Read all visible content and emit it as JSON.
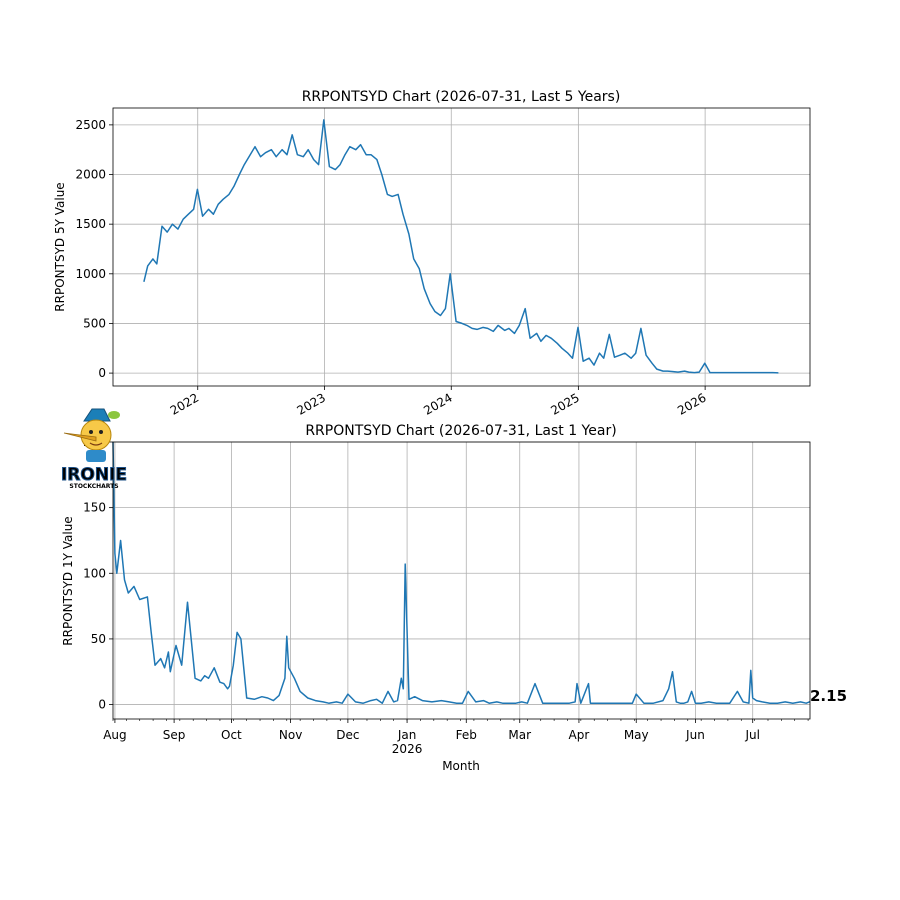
{
  "colors": {
    "line": "#1f77b4",
    "grid": "#b0b0b0",
    "logo_fill": "#8ecbe8",
    "logo_stroke": "#1b4f86"
  },
  "logo": {
    "text_main": "IRONIE",
    "text_sub": "STOCKCHARTS"
  },
  "chart_data": [
    {
      "type": "line",
      "title": "RRPONTSYD Chart (2026-07-31, Last 5 Years)",
      "xlabel": "",
      "ylabel": "RRPONTSYD 5Y Value",
      "x_axis": "date",
      "xlim": [
        "2021-05-02",
        "2026-10-30"
      ],
      "ylim": [
        -130,
        2670
      ],
      "y_ticks": [
        0,
        500,
        1000,
        1500,
        2000,
        2500
      ],
      "x_ticks": [
        {
          "date": "2022-01-01",
          "label": "2022"
        },
        {
          "date": "2023-01-01",
          "label": "2023"
        },
        {
          "date": "2024-01-01",
          "label": "2024"
        },
        {
          "date": "2025-01-01",
          "label": "2025"
        },
        {
          "date": "2026-01-01",
          "label": "2026"
        }
      ],
      "grid": true,
      "series": [
        {
          "x": [
            "2021-07-30",
            "2021-08-10",
            "2021-08-25",
            "2021-09-05",
            "2021-09-20",
            "2021-10-05",
            "2021-10-20",
            "2021-11-05",
            "2021-11-20",
            "2021-12-05",
            "2021-12-20",
            "2021-12-31",
            "2022-01-15",
            "2022-02-01",
            "2022-02-15",
            "2022-03-01",
            "2022-03-15",
            "2022-04-01",
            "2022-04-15",
            "2022-05-01",
            "2022-05-15",
            "2022-06-01",
            "2022-06-15",
            "2022-07-01",
            "2022-07-15",
            "2022-08-01",
            "2022-08-15",
            "2022-09-01",
            "2022-09-15",
            "2022-09-30",
            "2022-10-15",
            "2022-11-01",
            "2022-11-15",
            "2022-12-01",
            "2022-12-15",
            "2022-12-30",
            "2023-01-15",
            "2023-02-01",
            "2023-02-15",
            "2023-03-01",
            "2023-03-15",
            "2023-04-01",
            "2023-04-15",
            "2023-05-01",
            "2023-05-15",
            "2023-06-01",
            "2023-06-15",
            "2023-07-01",
            "2023-07-15",
            "2023-08-01",
            "2023-08-15",
            "2023-09-01",
            "2023-09-15",
            "2023-10-01",
            "2023-10-15",
            "2023-11-01",
            "2023-11-15",
            "2023-12-01",
            "2023-12-15",
            "2023-12-29",
            "2024-01-15",
            "2024-02-01",
            "2024-02-15",
            "2024-03-01",
            "2024-03-15",
            "2024-04-01",
            "2024-04-15",
            "2024-05-01",
            "2024-05-15",
            "2024-06-03",
            "2024-06-15",
            "2024-07-01",
            "2024-07-15",
            "2024-08-01",
            "2024-08-15",
            "2024-09-03",
            "2024-09-15",
            "2024-09-30",
            "2024-10-15",
            "2024-11-01",
            "2024-11-15",
            "2024-12-02",
            "2024-12-15",
            "2024-12-31",
            "2025-01-15",
            "2025-02-01",
            "2025-02-15",
            "2025-03-03",
            "2025-03-15",
            "2025-03-31",
            "2025-04-15",
            "2025-05-01",
            "2025-05-15",
            "2025-06-02",
            "2025-06-15",
            "2025-06-30",
            "2025-07-15",
            "2025-08-01",
            "2025-08-15",
            "2025-09-02",
            "2025-09-15",
            "2025-10-01",
            "2025-10-15",
            "2025-11-03",
            "2025-11-15",
            "2025-12-01",
            "2025-12-15",
            "2025-12-31",
            "2026-01-15",
            "2026-02-02",
            "2026-02-15",
            "2026-03-02",
            "2026-03-15",
            "2026-04-01",
            "2026-04-15",
            "2026-05-01",
            "2026-05-15",
            "2026-06-01",
            "2026-06-15",
            "2026-07-01",
            "2026-07-15",
            "2026-07-31"
          ],
          "values": [
            920,
            1080,
            1150,
            1100,
            1480,
            1420,
            1500,
            1450,
            1550,
            1600,
            1650,
            1850,
            1580,
            1650,
            1600,
            1700,
            1750,
            1800,
            1880,
            2000,
            2100,
            2200,
            2280,
            2180,
            2220,
            2250,
            2180,
            2250,
            2200,
            2400,
            2200,
            2180,
            2250,
            2150,
            2100,
            2550,
            2080,
            2050,
            2100,
            2200,
            2280,
            2250,
            2300,
            2200,
            2200,
            2150,
            2000,
            1800,
            1780,
            1800,
            1600,
            1400,
            1150,
            1050,
            850,
            700,
            620,
            580,
            650,
            1000,
            520,
            500,
            480,
            450,
            440,
            460,
            450,
            420,
            480,
            430,
            450,
            400,
            480,
            650,
            350,
            400,
            320,
            380,
            350,
            300,
            250,
            200,
            150,
            460,
            120,
            150,
            80,
            200,
            150,
            390,
            160,
            180,
            200,
            150,
            200,
            450,
            180,
            100,
            40,
            20,
            20,
            15,
            10,
            20,
            10,
            5,
            10,
            100,
            5,
            5,
            5,
            5,
            5,
            5,
            5,
            5,
            5,
            5,
            5,
            5,
            5,
            2
          ]
        }
      ]
    },
    {
      "type": "line",
      "title": "RRPONTSYD Chart (2026-07-31, Last 1 Year)",
      "xlabel": "Month",
      "ylabel": "RRPONTSYD 1Y Value",
      "x_axis": "date",
      "xlim": [
        "2025-07-31",
        "2026-07-31"
      ],
      "ylim": [
        -11,
        200
      ],
      "y_ticks": [
        0,
        50,
        100,
        150,
        200
      ],
      "x_ticks": [
        {
          "date": "2025-08-01",
          "label": "Aug"
        },
        {
          "date": "2025-09-01",
          "label": "Sep"
        },
        {
          "date": "2025-10-01",
          "label": "Oct"
        },
        {
          "date": "2025-11-01",
          "label": "Nov"
        },
        {
          "date": "2025-12-01",
          "label": "Dec"
        },
        {
          "date": "2026-01-01",
          "label": "Jan",
          "label2": "2026"
        },
        {
          "date": "2026-02-01",
          "label": "Feb"
        },
        {
          "date": "2026-03-01",
          "label": "Mar"
        },
        {
          "date": "2026-04-01",
          "label": "Apr"
        },
        {
          "date": "2026-05-01",
          "label": "May"
        },
        {
          "date": "2026-06-01",
          "label": "Jun"
        },
        {
          "date": "2026-07-01",
          "label": "Jul"
        }
      ],
      "grid": true,
      "last_value_label": "2.15",
      "series": [
        {
          "x": [
            "2025-07-31",
            "2025-08-01",
            "2025-08-02",
            "2025-08-04",
            "2025-08-06",
            "2025-08-08",
            "2025-08-11",
            "2025-08-14",
            "2025-08-18",
            "2025-08-20",
            "2025-08-22",
            "2025-08-25",
            "2025-08-27",
            "2025-08-29",
            "2025-08-30",
            "2025-09-02",
            "2025-09-05",
            "2025-09-08",
            "2025-09-12",
            "2025-09-15",
            "2025-09-17",
            "2025-09-19",
            "2025-09-22",
            "2025-09-25",
            "2025-09-27",
            "2025-09-29",
            "2025-09-30",
            "2025-10-02",
            "2025-10-04",
            "2025-10-06",
            "2025-10-09",
            "2025-10-13",
            "2025-10-17",
            "2025-10-20",
            "2025-10-23",
            "2025-10-26",
            "2025-10-29",
            "2025-10-30",
            "2025-10-31",
            "2025-11-03",
            "2025-11-06",
            "2025-11-10",
            "2025-11-14",
            "2025-11-18",
            "2025-11-21",
            "2025-11-25",
            "2025-11-28",
            "2025-12-01",
            "2025-12-05",
            "2025-12-09",
            "2025-12-13",
            "2025-12-16",
            "2025-12-19",
            "2025-12-22",
            "2025-12-25",
            "2025-12-27",
            "2025-12-29",
            "2025-12-30",
            "2025-12-31",
            "2026-01-02",
            "2026-01-05",
            "2026-01-09",
            "2026-01-14",
            "2026-01-19",
            "2026-01-23",
            "2026-01-27",
            "2026-01-30",
            "2026-02-02",
            "2026-02-06",
            "2026-02-10",
            "2026-02-13",
            "2026-02-17",
            "2026-02-20",
            "2026-02-24",
            "2026-02-27",
            "2026-03-02",
            "2026-03-05",
            "2026-03-09",
            "2026-03-13",
            "2026-03-18",
            "2026-03-23",
            "2026-03-27",
            "2026-03-30",
            "2026-03-31",
            "2026-04-02",
            "2026-04-06",
            "2026-04-07",
            "2026-04-09",
            "2026-04-13",
            "2026-04-17",
            "2026-04-21",
            "2026-04-25",
            "2026-04-29",
            "2026-05-01",
            "2026-05-05",
            "2026-05-10",
            "2026-05-15",
            "2026-05-18",
            "2026-05-20",
            "2026-05-22",
            "2026-05-24",
            "2026-05-26",
            "2026-05-28",
            "2026-05-30",
            "2026-06-01",
            "2026-06-04",
            "2026-06-08",
            "2026-06-12",
            "2026-06-16",
            "2026-06-19",
            "2026-06-23",
            "2026-06-26",
            "2026-06-29",
            "2026-06-30",
            "2026-07-01",
            "2026-07-03",
            "2026-07-06",
            "2026-07-10",
            "2026-07-14",
            "2026-07-18",
            "2026-07-22",
            "2026-07-26",
            "2026-07-29",
            "2026-07-31"
          ],
          "values": [
            200,
            115,
            100,
            125,
            95,
            85,
            90,
            80,
            82,
            55,
            30,
            35,
            28,
            40,
            25,
            45,
            30,
            78,
            20,
            18,
            22,
            20,
            28,
            17,
            16,
            12,
            14,
            30,
            55,
            50,
            5,
            4,
            6,
            5,
            3,
            7,
            20,
            52,
            28,
            20,
            10,
            5,
            3,
            2,
            1,
            2,
            1,
            8,
            2,
            1,
            3,
            4,
            1,
            10,
            2,
            3,
            20,
            12,
            107,
            4,
            6,
            3,
            2,
            3,
            2,
            1,
            1,
            10,
            2,
            3,
            1,
            2,
            1,
            1,
            1,
            2,
            1,
            16,
            1,
            1,
            1,
            1,
            2,
            16,
            1,
            16,
            1,
            1,
            1,
            1,
            1,
            1,
            1,
            8,
            1,
            1,
            3,
            12,
            25,
            2,
            1,
            1,
            2,
            10,
            1,
            1,
            2,
            1,
            1,
            1,
            10,
            2,
            1,
            26,
            5,
            3,
            2,
            1,
            1,
            2,
            1,
            2,
            1,
            2.15
          ]
        }
      ]
    }
  ]
}
